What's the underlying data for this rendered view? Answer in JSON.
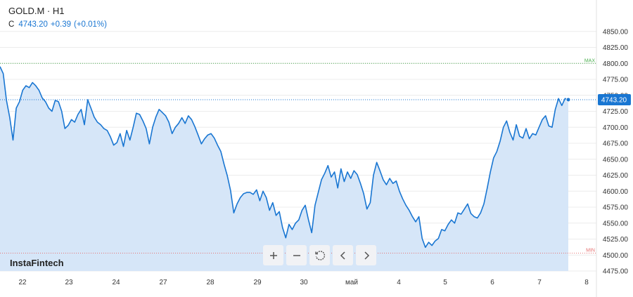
{
  "header": {
    "symbol": "GOLD.M · H1",
    "close_label": "C",
    "close_value": "4743.20",
    "change": "+0.39",
    "change_pct": "(+0.01%)"
  },
  "brand": "InstaFintech",
  "toolbar": {
    "buttons": [
      {
        "icon": "plus-icon"
      },
      {
        "icon": "minus-icon"
      },
      {
        "icon": "reset-icon"
      },
      {
        "icon": "chevron-left-icon"
      },
      {
        "icon": "chevron-right-icon"
      }
    ]
  },
  "colors": {
    "line": "#1976d2",
    "fill": "#d6e6f8",
    "max": "#4caf50",
    "min": "#e57373",
    "grid": "#ececec"
  },
  "chart_data": {
    "type": "area",
    "ylim": [
      4475,
      4875
    ],
    "y_ticks": [
      "4475.00",
      "4500.00",
      "4525.00",
      "4550.00",
      "4575.00",
      "4600.00",
      "4625.00",
      "4650.00",
      "4675.00",
      "4700.00",
      "4725.00",
      "4750.00",
      "4775.00",
      "4800.00",
      "4825.00",
      "4850.00"
    ],
    "x_labels": [
      "22",
      "23",
      "24",
      "27",
      "28",
      "29",
      "30",
      "май",
      "4",
      "5",
      "6",
      "7",
      "8"
    ],
    "last_price": "4743.20",
    "last_value": 4743.2,
    "max_label": "MAX",
    "max_value": 4800,
    "min_label": "MIN",
    "min_value": 4503,
    "values": [
      4795,
      4784,
      4742,
      4715,
      4680,
      4730,
      4740,
      4758,
      4765,
      4762,
      4770,
      4765,
      4758,
      4746,
      4740,
      4730,
      4725,
      4742,
      4740,
      4725,
      4698,
      4703,
      4712,
      4708,
      4720,
      4728,
      4704,
      4743,
      4730,
      4716,
      4708,
      4704,
      4698,
      4695,
      4685,
      4672,
      4676,
      4690,
      4670,
      4695,
      4680,
      4700,
      4722,
      4720,
      4710,
      4698,
      4674,
      4700,
      4716,
      4728,
      4723,
      4718,
      4708,
      4690,
      4700,
      4706,
      4715,
      4706,
      4718,
      4712,
      4701,
      4688,
      4674,
      4682,
      4688,
      4690,
      4683,
      4672,
      4662,
      4642,
      4624,
      4601,
      4566,
      4580,
      4590,
      4596,
      4598,
      4598,
      4595,
      4602,
      4585,
      4600,
      4590,
      4570,
      4582,
      4562,
      4568,
      4543,
      4527,
      4548,
      4540,
      4550,
      4555,
      4570,
      4578,
      4555,
      4535,
      4578,
      4598,
      4618,
      4628,
      4640,
      4622,
      4630,
      4605,
      4635,
      4615,
      4630,
      4620,
      4632,
      4626,
      4612,
      4596,
      4572,
      4582,
      4625,
      4645,
      4632,
      4618,
      4610,
      4620,
      4612,
      4616,
      4600,
      4588,
      4578,
      4570,
      4560,
      4552,
      4560,
      4526,
      4512,
      4520,
      4515,
      4522,
      4526,
      4540,
      4538,
      4548,
      4555,
      4550,
      4566,
      4564,
      4572,
      4580,
      4565,
      4560,
      4558,
      4566,
      4580,
      4604,
      4630,
      4652,
      4662,
      4678,
      4700,
      4710,
      4692,
      4680,
      4704,
      4686,
      4683,
      4698,
      4682,
      4690,
      4688,
      4700,
      4712,
      4718,
      4702,
      4700,
      4728,
      4745,
      4734,
      4745,
      4743.2
    ]
  }
}
